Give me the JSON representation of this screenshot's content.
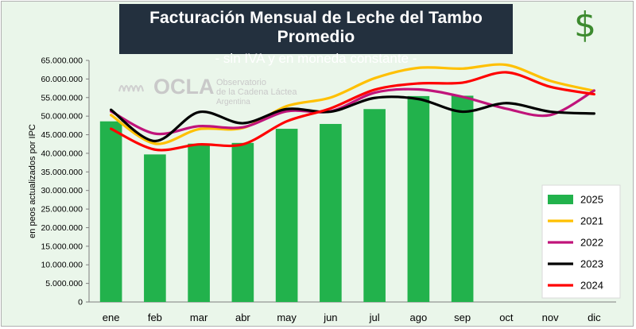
{
  "chart_data": {
    "type": "bar",
    "title": "Facturación Mensual de Leche del Tambo Promedio",
    "subtitle": "- sin IVA y en moneda constante -",
    "ylabel": "en peos actualizados por IPC",
    "xlabel": "",
    "ylim": [
      0,
      65000000
    ],
    "yticks": [
      0,
      5000000,
      10000000,
      15000000,
      20000000,
      25000000,
      30000000,
      35000000,
      40000000,
      45000000,
      50000000,
      55000000,
      60000000,
      65000000
    ],
    "ytick_labels": [
      "0",
      "5.000.000",
      "10.000.000",
      "15.000.000",
      "20.000.000",
      "25.000.000",
      "30.000.000",
      "35.000.000",
      "40.000.000",
      "45.000.000",
      "50.000.000",
      "55.000.000",
      "60.000.000",
      "65.000.000"
    ],
    "categories": [
      "ene",
      "feb",
      "mar",
      "abr",
      "may",
      "jun",
      "jul",
      "ago",
      "sep",
      "oct",
      "nov",
      "dic"
    ],
    "bars": {
      "name": "2025",
      "color": "#22b24c",
      "values": [
        48600000,
        39700000,
        42600000,
        42800000,
        46600000,
        47900000,
        51900000,
        55400000,
        55500000,
        null,
        null,
        null
      ]
    },
    "series": [
      {
        "name": "2021",
        "color": "#ffc000",
        "values": [
          50300000,
          42600000,
          46500000,
          46800000,
          52700000,
          55000000,
          60200000,
          63000000,
          62800000,
          63800000,
          59500000,
          56800000
        ]
      },
      {
        "name": "2022",
        "color": "#c0147a",
        "values": [
          51300000,
          45300000,
          47300000,
          47000000,
          51300000,
          51300000,
          56300000,
          57200000,
          55200000,
          52000000,
          50300000,
          56900000
        ]
      },
      {
        "name": "2023",
        "color": "#000000",
        "values": [
          51700000,
          43300000,
          51100000,
          48100000,
          51900000,
          51200000,
          54900000,
          54600000,
          51200000,
          53500000,
          51200000,
          50700000
        ]
      },
      {
        "name": "2024",
        "color": "#ff0000",
        "values": [
          46600000,
          41000000,
          42400000,
          42400000,
          48600000,
          52100000,
          57100000,
          58800000,
          59000000,
          61800000,
          57900000,
          55900000
        ]
      }
    ],
    "legend": [
      "2025",
      "2021",
      "2022",
      "2023",
      "2024"
    ],
    "legend_position": "bottom-right",
    "grid": false
  },
  "watermark": {
    "brand": "OCLA",
    "line1": "Observatorio",
    "line2": "de la Cadena Láctea",
    "line3": "Argentina"
  },
  "currency_symbol": "$"
}
